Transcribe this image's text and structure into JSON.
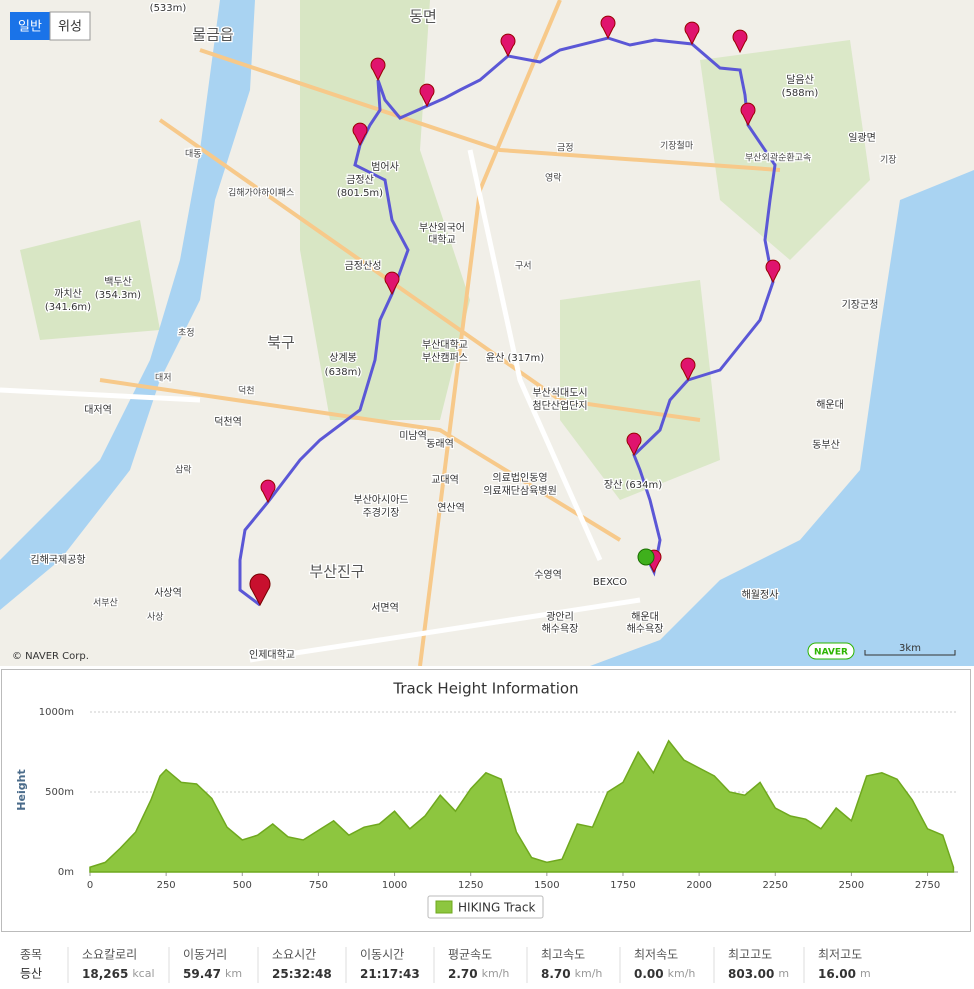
{
  "map": {
    "tabs": [
      "일반",
      "위성"
    ],
    "labels": [
      "(533m)",
      "동면",
      "물금읍",
      "달음산",
      "(588m)",
      "일광면",
      "범어사",
      "금정산",
      "(801.5m)",
      "부산외국어",
      "대학교",
      "금정산성",
      "백두산",
      "(354.3m)",
      "까치산",
      "(341.6m)",
      "북구",
      "상계봉",
      "(638m)",
      "부산대학교",
      "부산캠퍼스",
      "윤산 (317m)",
      "기장군청",
      "부산식대도시",
      "첨단산업단지",
      "해운대",
      "동부산",
      "대저역",
      "덕천역",
      "미남역",
      "동래역",
      "의료법인동영",
      "의료재단삼육병원",
      "교대역",
      "장산 (634m)",
      "부산아시아드",
      "주경기장",
      "연산역",
      "김해국제공항",
      "부산진구",
      "수영역",
      "BEXCO",
      "사상역",
      "해월정사",
      "서면역",
      "해운대",
      "해수욕장",
      "광안리",
      "해수욕장",
      "인제대학교",
      "금정",
      "기장철마",
      "구서",
      "영락",
      "대동",
      "초정",
      "대저",
      "덕천",
      "삼락",
      "서부산",
      "사상",
      "기장",
      "김해가야하이패스",
      "부산외곽순환고속"
    ],
    "copyright": "© NAVER Corp.",
    "logo": "NAVER",
    "scale": "3km"
  },
  "chart_data": {
    "type": "area",
    "title": "Track Height Information",
    "y_label": "Height",
    "x": [
      0,
      50,
      100,
      150,
      200,
      230,
      250,
      300,
      350,
      400,
      450,
      500,
      550,
      600,
      650,
      700,
      750,
      800,
      850,
      900,
      950,
      1000,
      1050,
      1100,
      1150,
      1200,
      1250,
      1300,
      1350,
      1400,
      1450,
      1500,
      1550,
      1600,
      1650,
      1700,
      1750,
      1800,
      1850,
      1900,
      1950,
      2000,
      2050,
      2100,
      2150,
      2200,
      2250,
      2300,
      2350,
      2400,
      2450,
      2500,
      2550,
      2600,
      2650,
      2700,
      2750,
      2800,
      2835
    ],
    "series": [
      {
        "name": "HIKING Track",
        "color": "#8dc63f",
        "values": [
          30,
          60,
          150,
          250,
          450,
          600,
          640,
          560,
          550,
          460,
          280,
          200,
          230,
          300,
          220,
          200,
          260,
          320,
          230,
          280,
          300,
          380,
          270,
          350,
          480,
          380,
          520,
          620,
          580,
          250,
          90,
          60,
          80,
          300,
          280,
          500,
          560,
          750,
          620,
          820,
          700,
          650,
          600,
          500,
          480,
          560,
          400,
          350,
          330,
          270,
          400,
          320,
          600,
          620,
          580,
          450,
          270,
          230,
          30
        ]
      }
    ],
    "xlim": [
      0,
      2850
    ],
    "ylim": [
      0,
      1000
    ],
    "xticks": [
      0,
      250,
      500,
      750,
      1000,
      1250,
      1500,
      1750,
      2000,
      2250,
      2500,
      2750
    ],
    "yticks": [
      {
        "value": 0,
        "label": "0m"
      },
      {
        "value": 500,
        "label": "500m"
      },
      {
        "value": 1000,
        "label": "1000m"
      }
    ],
    "grid": true
  },
  "stats": {
    "kind": [
      "종목",
      "등산"
    ],
    "items": [
      {
        "label": "소요칼로리",
        "value": "18,265",
        "unit": "kcal"
      },
      {
        "label": "이동거리",
        "value": "59.47",
        "unit": "km"
      },
      {
        "label": "소요시간",
        "value": "25:32:48",
        "unit": ""
      },
      {
        "label": "이동시간",
        "value": "21:17:43",
        "unit": ""
      },
      {
        "label": "평균속도",
        "value": "2.70",
        "unit": "km/h"
      },
      {
        "label": "최고속도",
        "value": "8.70",
        "unit": "km/h"
      },
      {
        "label": "최저속도",
        "value": "0.00",
        "unit": "km/h"
      },
      {
        "label": "최고고도",
        "value": "803.00",
        "unit": "m"
      },
      {
        "label": "최저고도",
        "value": "16.00",
        "unit": "m"
      }
    ]
  }
}
